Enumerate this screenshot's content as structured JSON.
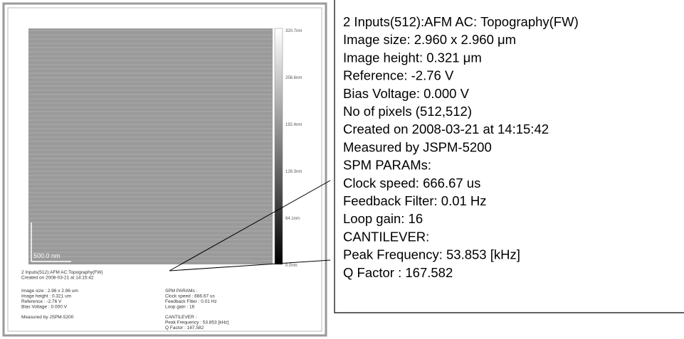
{
  "afm_panel": {
    "scale_bar": "500.0 nm",
    "colorbar_labels": [
      "320.7nm",
      "256.6nm",
      "192.4nm",
      "128.3nm",
      "64.1nm",
      "0.0nm"
    ],
    "header": [
      "2 Inputs(512):AFM AC:Topography(FW)",
      "Created on 2008-03-21 at 14:15:42"
    ],
    "left_info": [
      "Image size : 2.96 x 2.96 um",
      "Image height : 0.321 um",
      "Reference : -2.76 V",
      "Bias Voltage : 0.000 V"
    ],
    "measured_by": "Measured by JSPM-5200",
    "spm_params": [
      "SPM PARAMs :",
      "Clock speed : 666.67 us",
      "Feedback Filter : 0.01 Hz",
      "Loop gain : 16"
    ],
    "cantilever": [
      "CANTILEVER :",
      "Peak Frequency : 53.853 [kHz]",
      "Q Factor : 167.582"
    ]
  },
  "callout": {
    "lines": [
      "2 Inputs(512):AFM AC: Topography(FW)",
      "Image size: 2.960 x 2.960 μm",
      "Image height: 0.321 μm",
      "Reference: -2.76 V",
      "Bias Voltage: 0.000 V",
      "No of pixels (512,512)",
      "Created on 2008-03-21 at 14:15:42",
      "Measured by JSPM-5200",
      "SPM PARAMs:",
      "Clock speed: 666.67 us",
      "Feedback Filter: 0.01 Hz",
      "Loop gain: 16",
      "CANTILEVER:",
      "Peak Frequency: 53.853 [kHz]",
      "Q Factor : 167.582"
    ]
  }
}
